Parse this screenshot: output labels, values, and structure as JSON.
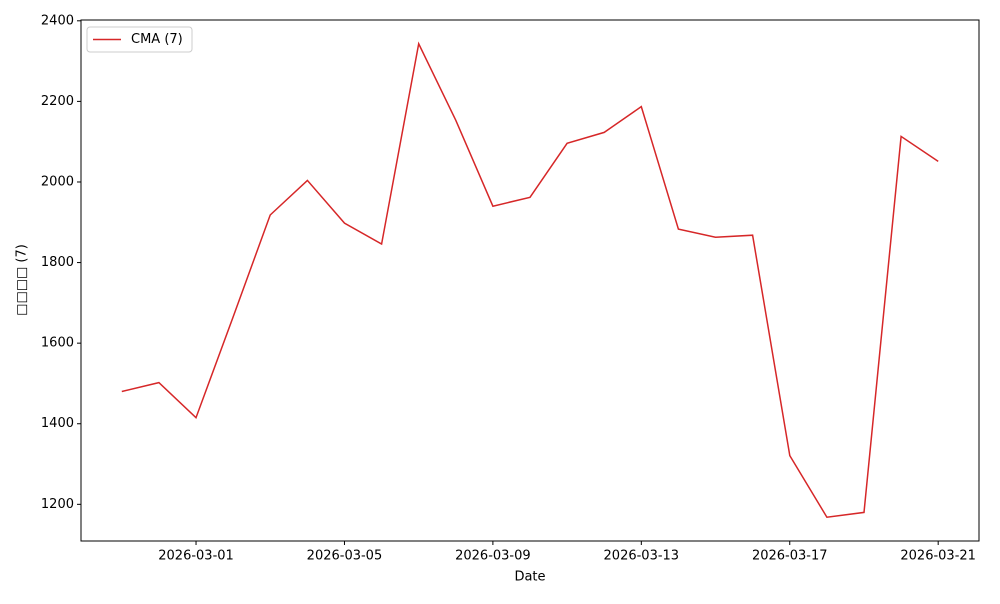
{
  "chart_data": {
    "type": "line",
    "x_label": "Date",
    "y_label": "□□□□ (7)",
    "x": [
      "2026-02-27",
      "2026-02-28",
      "2026-03-01",
      "2026-03-02",
      "2026-03-03",
      "2026-03-04",
      "2026-03-05",
      "2026-03-06",
      "2026-03-07",
      "2026-03-08",
      "2026-03-09",
      "2026-03-10",
      "2026-03-11",
      "2026-03-12",
      "2026-03-13",
      "2026-03-14",
      "2026-03-15",
      "2026-03-16",
      "2026-03-17",
      "2026-03-18",
      "2026-03-19",
      "2026-03-20",
      "2026-03-21"
    ],
    "series": [
      {
        "name": "CMA (7)",
        "color": "#d62728",
        "values": [
          1480,
          1502,
          1415,
          1665,
          1918,
          2004,
          1898,
          1846,
          2343,
          2153,
          1940,
          1962,
          2096,
          2123,
          2187,
          1883,
          1863,
          1868,
          1321,
          1168,
          1180,
          2113,
          2051
        ]
      }
    ],
    "xlim": [
      "2026-02-25T21:36:00Z",
      "2026-03-22T02:24:00Z"
    ],
    "xticks": [
      "2026-03-01",
      "2026-03-05",
      "2026-03-09",
      "2026-03-13",
      "2026-03-17",
      "2026-03-21"
    ],
    "ylim": [
      1109,
      2402
    ],
    "yticks": [
      1200,
      1400,
      1600,
      1800,
      2000,
      2200,
      2400
    ],
    "legend": "upper-left"
  }
}
